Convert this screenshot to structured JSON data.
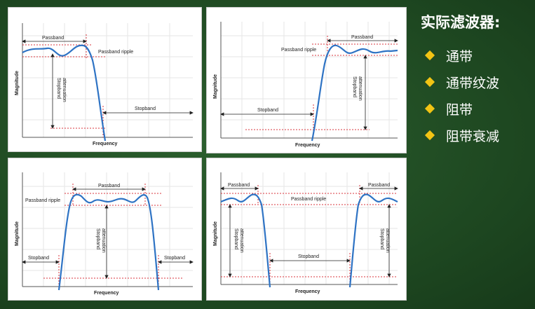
{
  "slide": {
    "title": "实际滤波器:",
    "bullets": [
      {
        "label": "通带"
      },
      {
        "label": "通带纹波"
      },
      {
        "label": "阻带"
      },
      {
        "label": "阻带衰减"
      }
    ],
    "bullet_icon": "diamond-bullet-icon",
    "colors": {
      "background": "#1f4a22",
      "bullet": "#f2c414",
      "curve": "#2e73c4",
      "guide": "#d9363e"
    }
  },
  "diagrams": [
    {
      "type": "lowpass",
      "x_axis": "Frequency",
      "y_axis": "Magnitude",
      "labels": {
        "passband": "Passband",
        "ripple": "Passband ripple",
        "attenuation": [
          "Stopband",
          "attenuation"
        ],
        "stopband": "Stopband"
      }
    },
    {
      "type": "highpass",
      "x_axis": "Frequency",
      "y_axis": "Magnitude",
      "labels": {
        "passband": "Passband",
        "ripple": "Passband ripple",
        "attenuation": [
          "Stopband",
          "attenuation"
        ],
        "stopband": "Stopband"
      }
    },
    {
      "type": "bandpass",
      "x_axis": "Frequency",
      "y_axis": "Magnitude",
      "labels": {
        "passband": "Passband",
        "ripple": "Passband ripple",
        "attenuation": [
          "Stopband",
          "attenuation"
        ],
        "stopband_left": "Stopband",
        "stopband_right": "Stopband"
      }
    },
    {
      "type": "bandstop",
      "x_axis": "Frequency",
      "y_axis": "Magnitude",
      "labels": {
        "passband_left": "Passband",
        "passband_right": "Passband",
        "ripple": "Passband ripple",
        "attenuation_left": [
          "Stopband",
          "attenuation"
        ],
        "attenuation_right": [
          "Stopband",
          "attenuation"
        ],
        "stopband": "Stopband"
      }
    }
  ]
}
